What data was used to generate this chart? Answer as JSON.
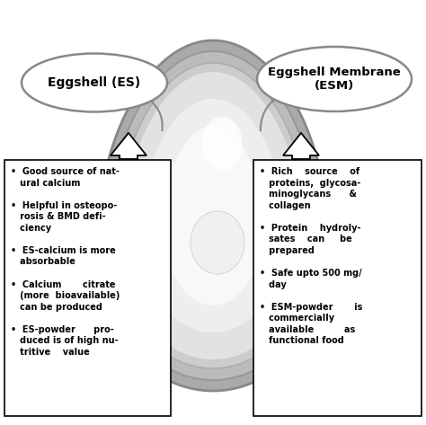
{
  "background_color": "#ffffff",
  "left_bubble_text": "Eggshell (ES)",
  "right_bubble_text": "Eggshell Membrane\n(ESM)",
  "left_bullet_text": "•  Good source of nat-\n   ural calcium\n\n•  Helpful in osteopo-\n   rosis & BMD defi-\n   ciency\n\n•  ES-calcium is more\n   absorbable\n\n•  Calcium       citrate\n   (more  bioavailable)\n   can be produced\n\n•  ES-powder      pro-\n   duced is of high nu-\n   tritive    value",
  "right_bullet_text": "•  Rich    source    of\n   proteins,  glycosa-\n   minoglycans      &\n   collagen\n\n•  Protein    hydroly-\n   sates    can     be\n   prepared\n\n•  Safe upto 500 mg/\n   day\n\n•  ESM-powder       is\n   commercially\n   available          as\n   functional food",
  "box_color": "#000000",
  "text_color": "#000000",
  "bubble_border_color": "#888888",
  "arrow_color": "#000000",
  "egg_outer_color": "#b0b0b0",
  "egg_mid_color": "#d0d0d0",
  "egg_inner_color": "#e8e8e8",
  "egg_center_color": "#f5f5f5",
  "egg_highlight_color": "#ffffff"
}
